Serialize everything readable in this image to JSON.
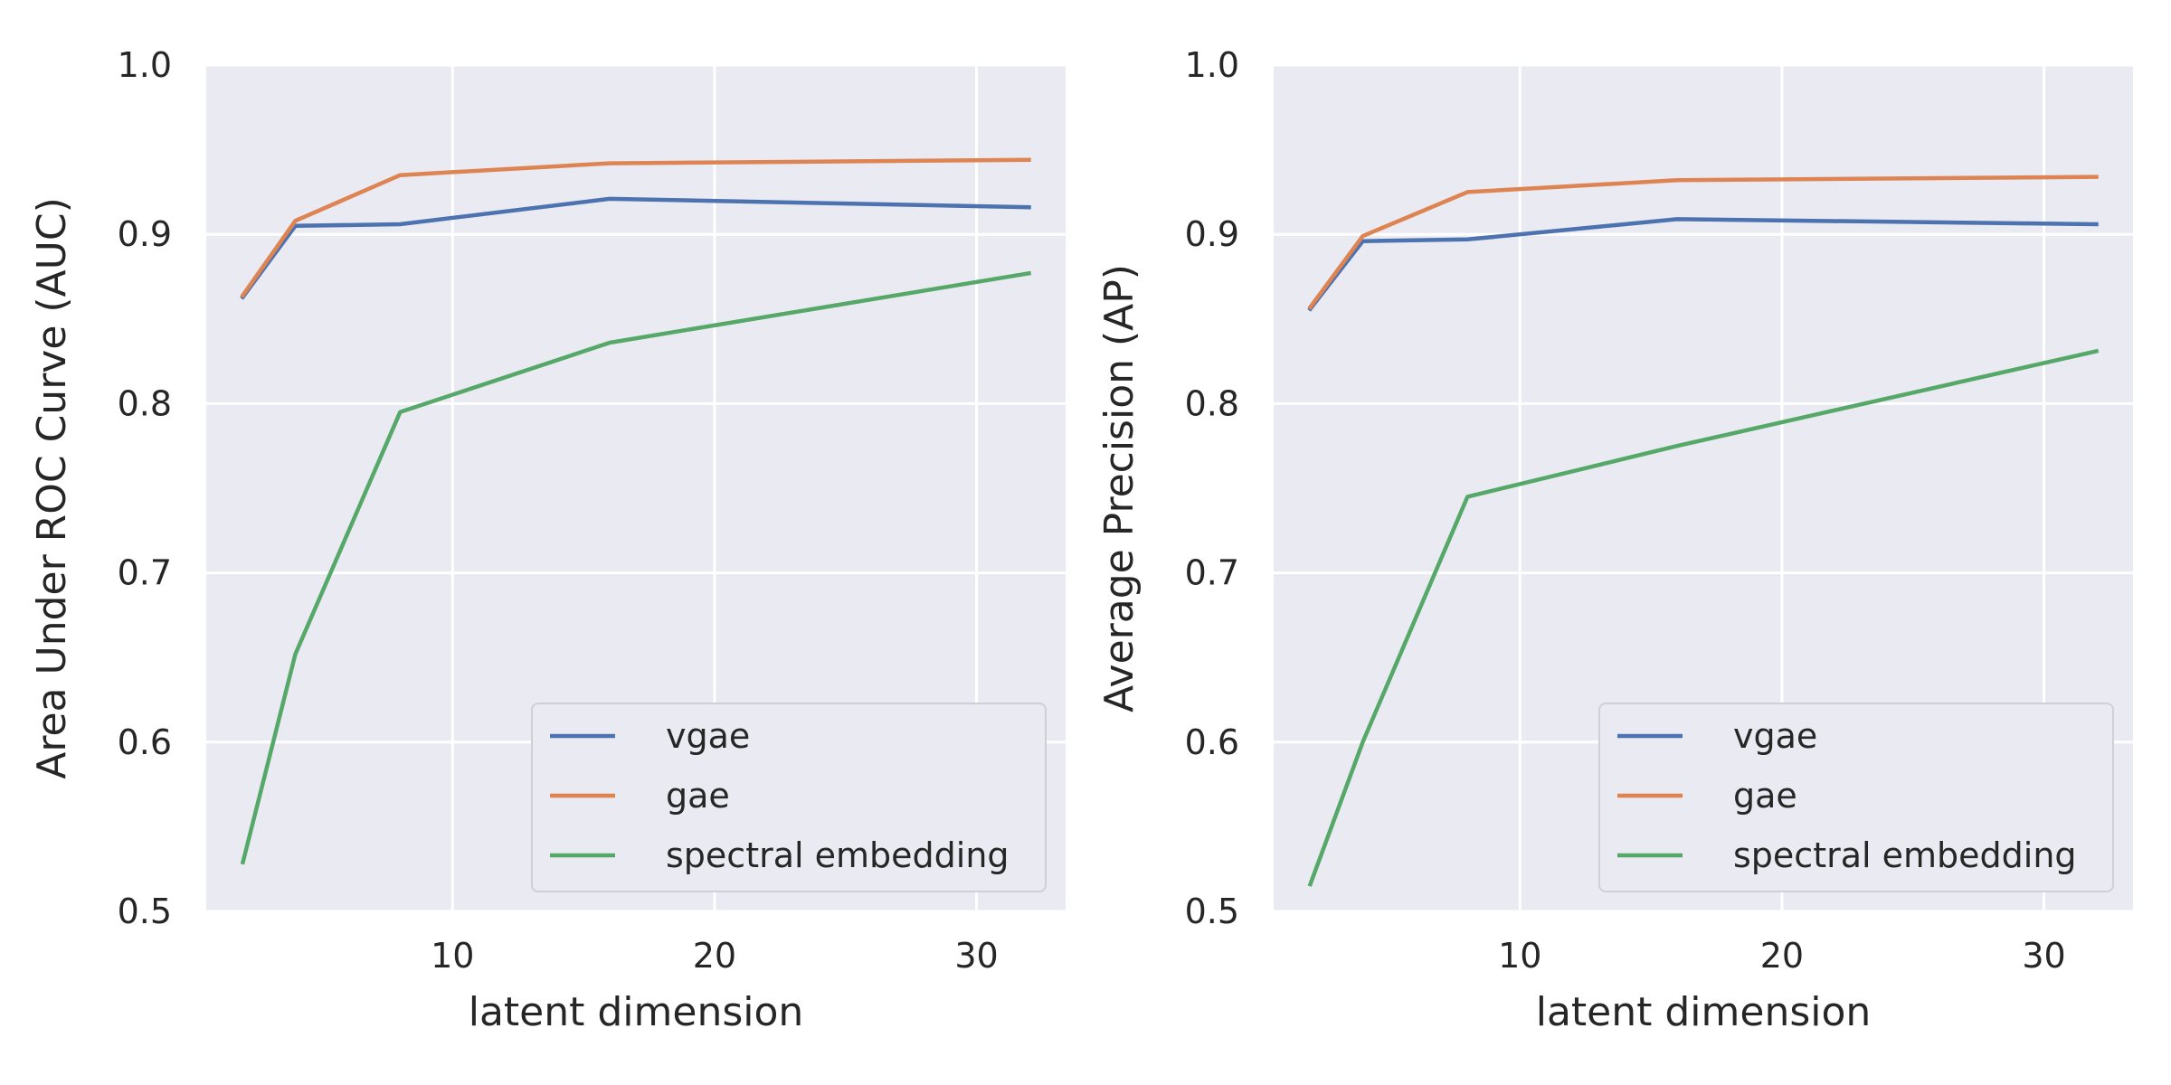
{
  "chart_data": [
    {
      "type": "line",
      "xlabel": "latent dimension",
      "ylabel": "Area Under ROC Curve (AUC)",
      "xlim": [
        0.6,
        33.4
      ],
      "ylim": [
        0.5,
        1.0
      ],
      "xticks": [
        10,
        20,
        30
      ],
      "yticks": [
        0.5,
        0.6,
        0.7,
        0.8,
        0.9,
        1.0
      ],
      "grid": true,
      "legend_position": "lower-right",
      "x": [
        2,
        4,
        8,
        16,
        32
      ],
      "series": [
        {
          "name": "vgae",
          "color": "#4c72b0",
          "values": [
            0.863,
            0.905,
            0.906,
            0.921,
            0.916
          ]
        },
        {
          "name": "gae",
          "color": "#dd8452",
          "values": [
            0.864,
            0.908,
            0.935,
            0.942,
            0.944
          ]
        },
        {
          "name": "spectral embedding",
          "color": "#55a868",
          "values": [
            0.529,
            0.652,
            0.795,
            0.836,
            0.877
          ]
        }
      ]
    },
    {
      "type": "line",
      "xlabel": "latent dimension",
      "ylabel": "Average Precision (AP)",
      "xlim": [
        0.6,
        33.4
      ],
      "ylim": [
        0.5,
        1.0
      ],
      "xticks": [
        10,
        20,
        30
      ],
      "yticks": [
        0.5,
        0.6,
        0.7,
        0.8,
        0.9,
        1.0
      ],
      "grid": true,
      "legend_position": "lower-right",
      "x": [
        2,
        4,
        8,
        16,
        32
      ],
      "series": [
        {
          "name": "vgae",
          "color": "#4c72b0",
          "values": [
            0.856,
            0.896,
            0.897,
            0.909,
            0.906
          ]
        },
        {
          "name": "gae",
          "color": "#dd8452",
          "values": [
            0.857,
            0.899,
            0.925,
            0.932,
            0.934
          ]
        },
        {
          "name": "spectral embedding",
          "color": "#55a868",
          "values": [
            0.516,
            0.6,
            0.745,
            0.775,
            0.831
          ]
        }
      ]
    }
  ]
}
